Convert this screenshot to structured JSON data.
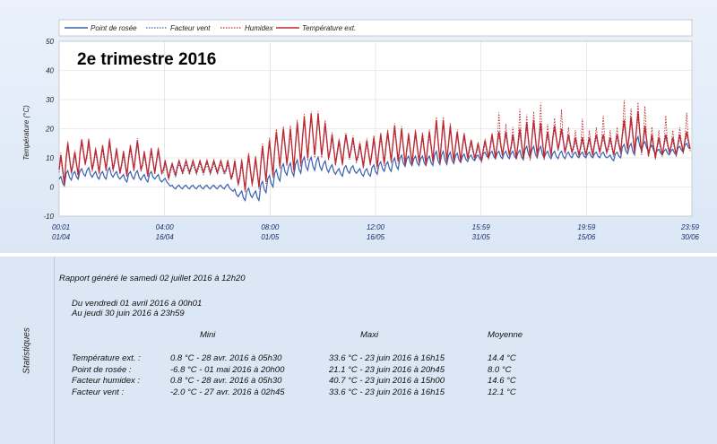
{
  "chart_data": {
    "type": "line",
    "title": "2e trimestre 2016",
    "ylabel": "Température (°C)",
    "ylim": [
      -10,
      50
    ],
    "yticks": [
      "50",
      "40",
      "30",
      "20",
      "10",
      "0",
      "-10"
    ],
    "yticks_values": [
      50,
      40,
      30,
      20,
      10,
      0,
      -10
    ],
    "x_tick_labels": [
      {
        "time": "00:01",
        "date": "01/04"
      },
      {
        "time": "04:00",
        "date": "16/04"
      },
      {
        "time": "08:00",
        "date": "01/05"
      },
      {
        "time": "12:00",
        "date": "16/05"
      },
      {
        "time": "15:59",
        "date": "31/05"
      },
      {
        "time": "19:59",
        "date": "15/06"
      },
      {
        "time": "23:59",
        "date": "30/06"
      }
    ],
    "x_range": [
      "01/04 00:01",
      "30/06 23:59"
    ],
    "grid": true,
    "legend_position": "top",
    "series": [
      {
        "name": "Point de rosée",
        "color": "#3a5fb0",
        "style": "solid"
      },
      {
        "name": "Facteur vent",
        "color": "#3a5fb0",
        "style": "dotted"
      },
      {
        "name": "Humidex",
        "color": "#c0272d",
        "style": "dotted"
      },
      {
        "name": "Température ext.",
        "color": "#c0272d",
        "style": "solid"
      }
    ],
    "daily_values": {
      "days": [
        "01/04",
        "02/04",
        "03/04",
        "04/04",
        "05/04",
        "06/04",
        "07/04",
        "08/04",
        "09/04",
        "10/04",
        "11/04",
        "12/04",
        "13/04",
        "14/04",
        "15/04",
        "16/04",
        "17/04",
        "18/04",
        "19/04",
        "20/04",
        "21/04",
        "22/04",
        "23/04",
        "24/04",
        "25/04",
        "26/04",
        "27/04",
        "28/04",
        "29/04",
        "30/04",
        "01/05",
        "02/05",
        "03/05",
        "04/05",
        "05/05",
        "06/05",
        "07/05",
        "08/05",
        "09/05",
        "10/05",
        "11/05",
        "12/05",
        "13/05",
        "14/05",
        "15/05",
        "16/05",
        "17/05",
        "18/05",
        "19/05",
        "20/05",
        "21/05",
        "22/05",
        "23/05",
        "24/05",
        "25/05",
        "26/05",
        "27/05",
        "28/05",
        "29/05",
        "30/05",
        "31/05",
        "01/06",
        "02/06",
        "03/06",
        "04/06",
        "05/06",
        "06/06",
        "07/06",
        "08/06",
        "09/06",
        "10/06",
        "11/06",
        "12/06",
        "13/06",
        "14/06",
        "15/06",
        "16/06",
        "17/06",
        "18/06",
        "19/06",
        "20/06",
        "21/06",
        "22/06",
        "23/06",
        "24/06",
        "25/06",
        "26/06",
        "27/06",
        "28/06",
        "29/06",
        "30/06"
      ],
      "temp_mean": [
        6,
        10,
        8,
        12,
        11,
        9,
        10,
        11,
        9,
        8,
        10,
        11,
        8,
        9,
        9,
        6,
        6,
        7,
        7,
        7,
        7,
        7,
        7,
        7,
        6,
        5,
        4,
        6,
        5,
        8,
        10,
        13,
        14,
        13,
        15,
        17,
        18,
        18,
        16,
        13,
        12,
        14,
        13,
        11,
        12,
        12,
        13,
        14,
        15,
        14,
        13,
        14,
        13,
        14,
        16,
        16,
        15,
        14,
        14,
        13,
        12,
        13,
        14,
        15,
        15,
        14,
        15,
        16,
        17,
        16,
        15,
        17,
        16,
        15,
        14,
        14,
        14,
        15,
        15,
        14,
        15,
        18,
        18,
        19,
        16,
        14,
        14,
        15,
        14,
        15,
        16
      ],
      "temp_amp": [
        5,
        5,
        4,
        4,
        5,
        4,
        4,
        5,
        4,
        4,
        4,
        5,
        4,
        4,
        4,
        3,
        2,
        2,
        2,
        2,
        2,
        2,
        2,
        2,
        3,
        4,
        5,
        5,
        5,
        6,
        6,
        6,
        6,
        7,
        7,
        7,
        7,
        7,
        6,
        5,
        4,
        4,
        4,
        4,
        4,
        5,
        5,
        5,
        6,
        6,
        5,
        5,
        5,
        5,
        7,
        7,
        6,
        5,
        4,
        3,
        3,
        3,
        4,
        4,
        4,
        4,
        5,
        6,
        6,
        6,
        4,
        4,
        4,
        3,
        3,
        3,
        3,
        3,
        3,
        3,
        3,
        5,
        6,
        7,
        5,
        4,
        3,
        3,
        3,
        3,
        3
      ],
      "dew_mean": [
        2,
        4,
        4,
        5,
        5,
        4,
        4,
        5,
        4,
        3,
        4,
        4,
        3,
        4,
        3,
        2,
        0,
        0,
        0,
        0,
        0,
        0,
        0,
        0,
        0,
        -2,
        -3,
        -2,
        -3,
        0,
        2,
        4,
        6,
        6,
        7,
        8,
        8,
        8,
        7,
        6,
        5,
        6,
        6,
        5,
        5,
        6,
        7,
        7,
        8,
        9,
        9,
        9,
        9,
        9,
        10,
        10,
        10,
        10,
        10,
        10,
        10,
        11,
        11,
        11,
        11,
        11,
        11,
        12,
        12,
        12,
        11,
        11,
        11,
        11,
        11,
        11,
        11,
        11,
        11,
        10,
        11,
        13,
        13,
        15,
        14,
        13,
        12,
        12,
        12,
        13,
        14
      ]
    }
  },
  "stats": {
    "side_label": "Statistiques",
    "generated": "Rapport généré le samedi 02 juillet 2016 à 12h20",
    "period_from": "Du vendredi 01 avril 2016 à 00h01",
    "period_to": "Au jeudi 30 juin 2016 à 23h59",
    "col_min": "Mini",
    "col_max": "Maxi",
    "col_avg": "Moyenne",
    "rows": [
      {
        "label": "Température ext. :",
        "min": "0.8 °C - 28 avr. 2016 à 05h30",
        "max": "33.6 °C - 23 juin 2016 à 16h15",
        "avg": "14.4 °C"
      },
      {
        "label": "Point de rosée :",
        "min": "-6.8 °C - 01 mai 2016 à 20h00",
        "max": "21.1 °C - 23 juin 2016 à 20h45",
        "avg": "8.0 °C"
      },
      {
        "label": "Facteur humidex :",
        "min": "0.8 °C - 28 avr. 2016 à 05h30",
        "max": "40.7 °C - 23 juin 2016 à 15h00",
        "avg": "14.6 °C"
      },
      {
        "label": "Facteur vent :",
        "min": "-2.0 °C - 27 avr. 2016 à 02h45",
        "max": "33.6 °C - 23 juin 2016 à 16h15",
        "avg": "12.1 °C"
      }
    ]
  }
}
